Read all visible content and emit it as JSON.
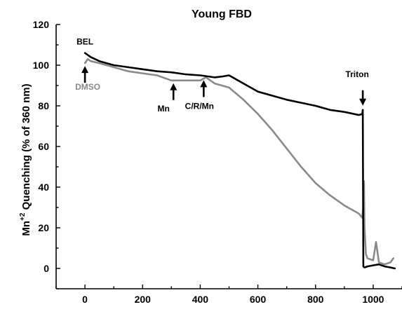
{
  "chart_data": {
    "type": "line",
    "title": "Young FBD",
    "xlabel": "",
    "ylabel": "Mn",
    "ylabel_superscript": "+2",
    "ylabel_rest": " Quenching (% of 360 nm)",
    "xlim": [
      -100,
      1100
    ],
    "ylim": [
      -10,
      120
    ],
    "x_ticks": [
      0,
      200,
      400,
      600,
      800,
      1000
    ],
    "y_ticks": [
      0,
      20,
      40,
      60,
      80,
      100,
      120
    ],
    "grid": false,
    "colors": {
      "BEL": "#000000",
      "DMSO": "#8a8a8a",
      "axes": "#000000"
    },
    "series": [
      {
        "name": "BEL",
        "x": [
          0,
          10,
          20,
          50,
          100,
          150,
          200,
          250,
          300,
          350,
          400,
          450,
          480,
          500,
          550,
          600,
          650,
          700,
          750,
          800,
          850,
          900,
          950,
          962,
          964,
          966,
          970,
          980,
          1000,
          1020,
          1040,
          1060,
          1075
        ],
        "y": [
          106,
          105,
          104,
          102,
          100,
          99,
          98,
          97,
          96.5,
          95.5,
          95,
          94,
          94.5,
          95,
          91,
          87,
          85,
          83,
          81.5,
          80,
          78,
          77,
          75.5,
          76,
          78,
          1,
          0.5,
          1,
          1.5,
          2,
          1,
          0.5,
          0
        ]
      },
      {
        "name": "DMSO",
        "x": [
          0,
          10,
          20,
          50,
          100,
          150,
          200,
          250,
          300,
          350,
          400,
          420,
          450,
          500,
          550,
          600,
          650,
          700,
          750,
          800,
          850,
          900,
          950,
          962,
          966,
          968,
          970,
          975,
          980,
          1000,
          1010,
          1020,
          1040,
          1060,
          1070
        ],
        "y": [
          101,
          103,
          102,
          101,
          99,
          97,
          96,
          95,
          92.5,
          92.5,
          92.5,
          94,
          91,
          89,
          83,
          76,
          68,
          59,
          50,
          42,
          36,
          31,
          27,
          25,
          30,
          43,
          20,
          7,
          5,
          4,
          13,
          3,
          2,
          3,
          5
        ]
      }
    ],
    "annotations": [
      {
        "text": "BEL",
        "x": 0,
        "y": 106,
        "color": "#000000"
      },
      {
        "text": "DMSO",
        "x": 0,
        "y": 101,
        "color": "#8a8a8a"
      },
      {
        "text": "Mn",
        "x": 307,
        "y": 92.5,
        "color": "#000000"
      },
      {
        "text": "C/R/Mn",
        "x": 412,
        "y": 94,
        "color": "#000000"
      },
      {
        "text": "Triton",
        "x": 964,
        "y": 78,
        "color": "#000000"
      }
    ]
  }
}
